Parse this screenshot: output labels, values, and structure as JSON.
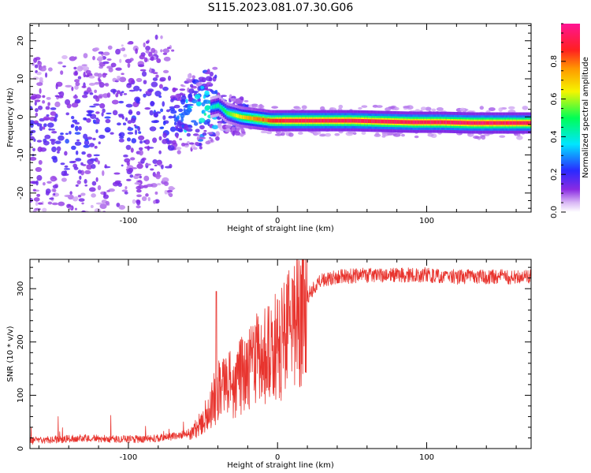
{
  "title": "S115.2023.081.07.30.G06",
  "chart_data": [
    {
      "type": "heatmap",
      "xlabel": "Height of straight line (km)",
      "ylabel": "Frequency (Hz)",
      "xlim": [
        -166,
        170
      ],
      "ylim": [
        -25,
        24.5
      ],
      "x_ticks": [
        -100,
        0,
        100
      ],
      "y_ticks": [
        -20,
        -10,
        0,
        10,
        20
      ],
      "colorbar": {
        "label": "Normalized spectral amplitude",
        "range": [
          0.0,
          1.0
        ],
        "ticks": [
          0.0,
          0.2,
          0.4,
          0.6,
          0.8
        ],
        "colormap": "rainbow (white, violet, blue, cyan, green, yellow, orange, red, magenta)"
      },
      "ridge": {
        "x": [
          -160,
          -140,
          -120,
          -100,
          -80,
          -60,
          -50,
          -40,
          -34,
          -25,
          -15,
          -5,
          0,
          10,
          30,
          50,
          70,
          90,
          110,
          130,
          150,
          170
        ],
        "frequency": [
          -5,
          -6,
          -4,
          -2,
          -1,
          1,
          2,
          3,
          1,
          0,
          -0.5,
          -1,
          -1,
          -1,
          -1,
          -1,
          -1.2,
          -1.4,
          -1.4,
          -1.6,
          -1.6,
          -1.6
        ],
        "peak_amplitude": [
          0.12,
          0.15,
          0.15,
          0.14,
          0.15,
          0.25,
          0.35,
          0.45,
          0.55,
          0.7,
          0.8,
          0.85,
          0.9,
          0.95,
          0.95,
          0.95,
          0.95,
          0.97,
          0.97,
          0.98,
          0.97,
          0.95
        ]
      }
    },
    {
      "type": "line",
      "xlabel": "Height of straight line (km)",
      "ylabel": "SNR (10 * v/v)",
      "xlim": [
        -166,
        170
      ],
      "ylim": [
        0,
        355
      ],
      "x_ticks": [
        -100,
        0,
        100
      ],
      "y_ticks": [
        0,
        100,
        200,
        300
      ],
      "color": "#e8342e",
      "series": [
        {
          "x": [
            -166,
            -150,
            -130,
            -110,
            -90,
            -80,
            -70,
            -60,
            -55,
            -50,
            -45,
            -42,
            -40,
            -35,
            -30,
            -25,
            -20,
            -15,
            -10,
            -5,
            0,
            5,
            10,
            15,
            20,
            25,
            30,
            40,
            50,
            60,
            80,
            100,
            120,
            140,
            170
          ],
          "values": [
            12,
            14,
            17,
            15,
            15,
            17,
            20,
            25,
            35,
            55,
            80,
            95,
            110,
            115,
            120,
            135,
            150,
            165,
            180,
            180,
            190,
            205,
            225,
            255,
            285,
            305,
            315,
            322,
            324,
            325,
            325,
            326,
            322,
            322,
            322
          ]
        }
      ]
    }
  ]
}
